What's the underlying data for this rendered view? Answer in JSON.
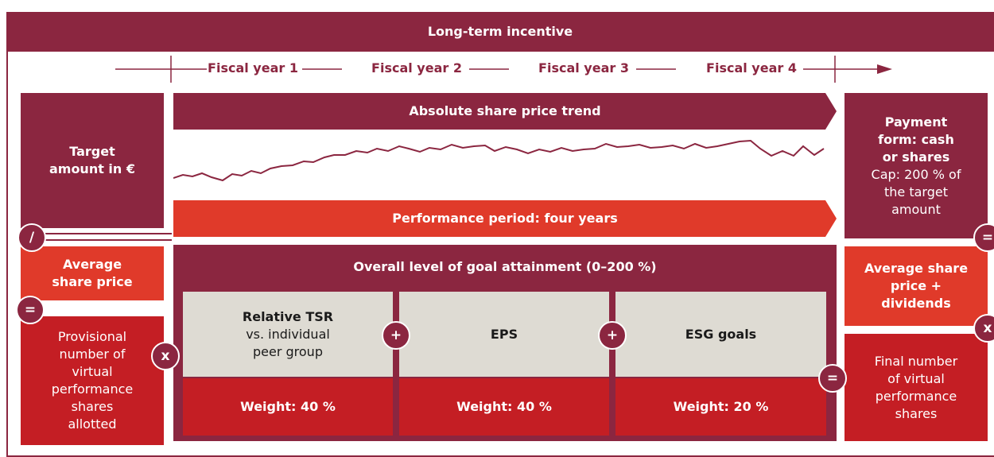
{
  "header": {
    "title": "Long-term incentive"
  },
  "timeline": [
    "Fiscal year 1",
    "Fiscal year 2",
    "Fiscal year 3",
    "Fiscal year 4"
  ],
  "left": {
    "target": "Target amount in €",
    "average_price": "Average share price",
    "provisional": "Provisional number of virtual performance shares allotted"
  },
  "middle": {
    "trend": "Absolute share price trend",
    "period": "Performance period: four years",
    "overall": "Overall level of goal attainment (0–200 %)",
    "goals": [
      {
        "title": "Relative TSR",
        "subtitle": "vs. individual peer group",
        "weight": "Weight: 40 %"
      },
      {
        "title": "EPS",
        "weight": "Weight: 40 %"
      },
      {
        "title": "ESG goals",
        "weight": "Weight: 20 %"
      }
    ]
  },
  "right": {
    "payment": "Payment form: cash or shares",
    "cap": "Cap: 200 % of the target amount",
    "average_price": "Average share price + dividends",
    "final": "Final number of virtual performance shares"
  },
  "operators": [
    "/",
    "=",
    "x",
    "+",
    "+",
    "=",
    "=",
    "x"
  ]
}
